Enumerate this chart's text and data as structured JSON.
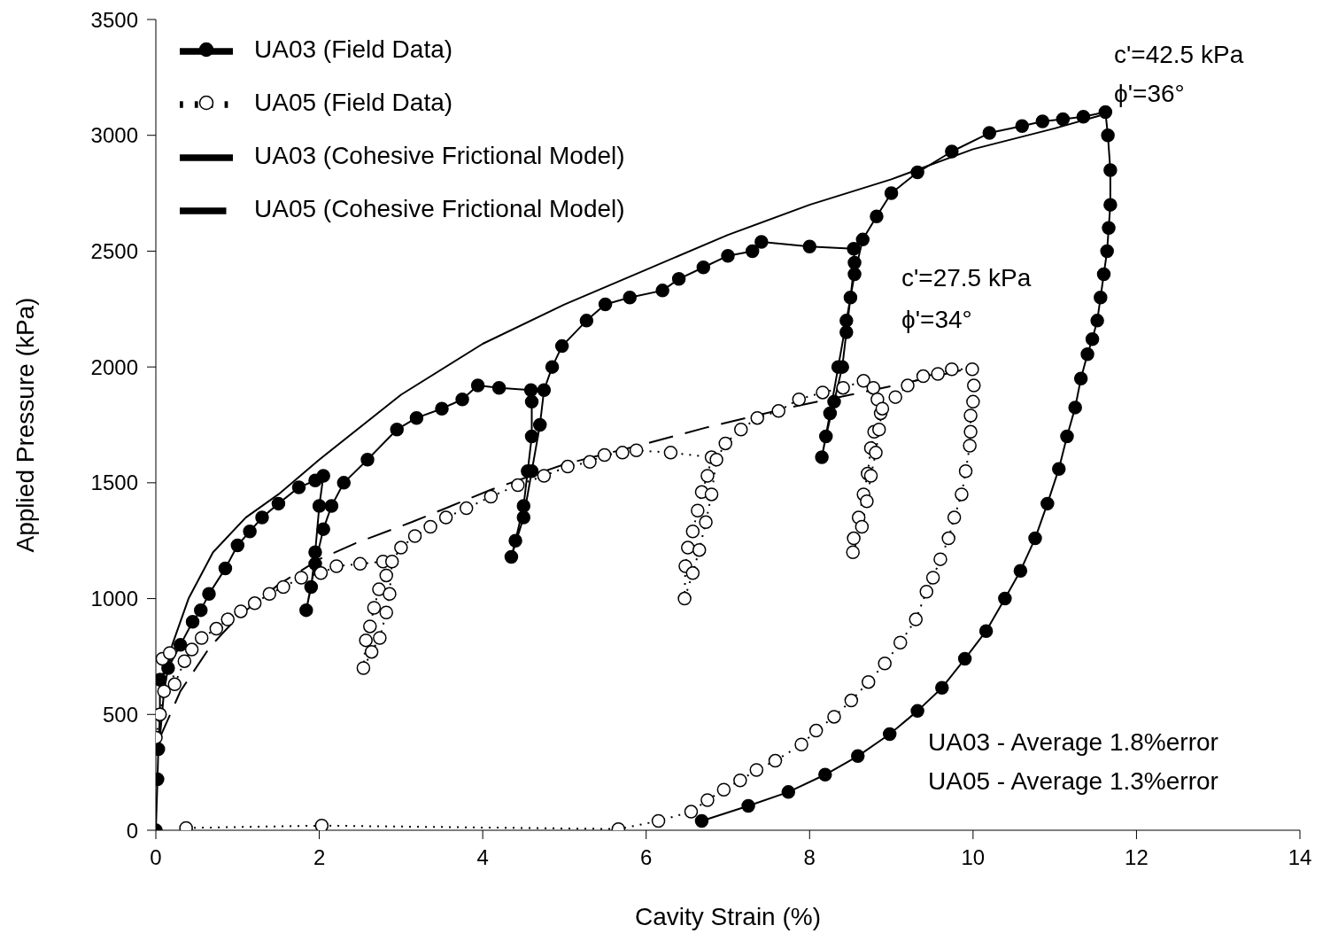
{
  "chart_data": {
    "type": "line",
    "xlabel": "Cavity Strain (%)",
    "ylabel": "Applied Pressure (kPa)",
    "xlim": [
      0,
      14
    ],
    "xticks": [
      0,
      2,
      4,
      6,
      8,
      10,
      12,
      14
    ],
    "ylim": [
      0,
      3500
    ],
    "yticks": [
      0,
      500,
      1000,
      1500,
      2000,
      2500,
      3000,
      3500
    ],
    "grid": false,
    "legend": "top left",
    "series": [
      {
        "name": "UA03 (Field Data)",
        "color": "#000000",
        "marker": "circle",
        "line_style": "solid",
        "x": [
          0,
          0.02,
          0.03,
          0.05,
          0.05,
          0.15,
          0.3,
          0.45,
          0.55,
          0.65,
          0.85,
          1.0,
          1.15,
          1.3,
          1.5,
          1.75,
          1.95,
          2.05,
          2.0,
          1.95,
          1.9,
          1.84,
          1.95,
          2.05,
          2.15,
          2.3,
          2.59,
          2.95,
          3.19,
          3.5,
          3.75,
          3.94,
          4.2,
          4.59,
          4.6,
          4.6,
          4.55,
          4.5,
          4.4,
          4.35,
          4.5,
          4.6,
          4.7,
          4.75,
          4.85,
          4.97,
          5.27,
          5.5,
          5.8,
          6.2,
          6.4,
          6.7,
          7.0,
          7.3,
          7.41,
          8.0,
          8.54,
          8.55,
          8.5,
          8.45,
          8.4,
          8.3,
          8.2,
          8.15,
          8.25,
          8.35,
          8.45,
          8.55,
          8.65,
          8.82,
          9.0,
          9.32,
          9.74,
          10.2,
          10.6,
          10.85,
          11.1,
          11.35,
          11.62,
          11.65,
          11.68,
          11.68,
          11.66,
          11.64,
          11.6,
          11.56,
          11.52,
          11.46,
          11.4,
          11.32,
          11.25,
          11.15,
          11.05,
          10.91,
          10.76,
          10.58,
          10.39,
          10.16,
          9.9,
          9.62,
          9.32,
          8.98,
          8.59,
          8.19,
          7.74,
          7.25,
          6.68
        ],
        "values": [
          0,
          220,
          350,
          500,
          650,
          700,
          800,
          900,
          950,
          1020,
          1130,
          1230,
          1290,
          1350,
          1410,
          1480,
          1510,
          1530,
          1400,
          1200,
          1050,
          950,
          1150,
          1300,
          1400,
          1500,
          1600,
          1730,
          1780,
          1820,
          1860,
          1920,
          1910,
          1900,
          1850,
          1700,
          1550,
          1400,
          1250,
          1180,
          1350,
          1550,
          1750,
          1900,
          2000,
          2090,
          2200,
          2270,
          2300,
          2330,
          2380,
          2430,
          2480,
          2500,
          2540,
          2520,
          2510,
          2450,
          2300,
          2150,
          2000,
          1850,
          1700,
          1610,
          1800,
          2000,
          2200,
          2400,
          2550,
          2650,
          2750,
          2840,
          2930,
          3010,
          3040,
          3060,
          3070,
          3080,
          3100,
          3000,
          2850,
          2700,
          2600,
          2500,
          2400,
          2300,
          2200,
          2120,
          2055,
          1950,
          1825,
          1700,
          1560,
          1410,
          1260,
          1120,
          1000,
          860,
          740,
          615,
          515,
          415,
          320,
          240,
          165,
          105,
          40
        ]
      },
      {
        "name": "UA05 (Field Data)",
        "color": "#000000",
        "marker": "circle",
        "line_style": "dotted",
        "x": [
          0.0,
          0.05,
          0.1,
          0.08,
          0.17,
          0.23,
          0.35,
          0.44,
          0.56,
          0.74,
          0.88,
          1.04,
          1.21,
          1.39,
          1.56,
          1.78,
          2.02,
          2.21,
          2.5,
          2.78,
          2.82,
          2.73,
          2.67,
          2.62,
          2.57,
          2.54,
          2.64,
          2.74,
          2.82,
          2.86,
          2.89,
          3.0,
          3.17,
          3.36,
          3.55,
          3.8,
          4.1,
          4.43,
          4.75,
          5.04,
          5.31,
          5.49,
          5.71,
          5.88,
          6.3,
          6.8,
          6.75,
          6.68,
          6.63,
          6.57,
          6.51,
          6.48,
          6.47,
          6.57,
          6.65,
          6.73,
          6.8,
          6.86,
          6.97,
          7.16,
          7.36,
          7.62,
          7.87,
          8.16,
          8.41,
          8.66,
          8.78,
          8.83,
          8.87,
          8.79,
          8.75,
          8.71,
          8.66,
          8.6,
          8.54,
          8.53,
          8.64,
          8.7,
          8.75,
          8.81,
          8.85,
          8.89,
          9.05,
          9.2,
          9.39,
          9.57,
          9.74,
          9.99,
          10.01,
          10.0,
          9.97,
          9.97,
          9.96,
          9.91,
          9.86,
          9.77,
          9.7,
          9.6,
          9.51,
          9.43,
          9.3,
          9.11,
          8.92,
          8.72,
          8.51,
          8.3,
          8.08,
          7.9,
          7.58,
          7.35,
          7.15,
          6.95,
          6.75,
          6.55,
          6.15,
          5.66,
          2.03,
          0.37
        ],
        "values": [
          400,
          500,
          600,
          740,
          765,
          630,
          730,
          780,
          830,
          870,
          910,
          945,
          980,
          1020,
          1050,
          1090,
          1110,
          1140,
          1150,
          1160,
          1100,
          1040,
          960,
          880,
          820,
          700,
          770,
          830,
          940,
          1020,
          1160,
          1220,
          1270,
          1310,
          1350,
          1390,
          1440,
          1490,
          1530,
          1570,
          1590,
          1620,
          1630,
          1640,
          1630,
          1610,
          1530,
          1460,
          1380,
          1290,
          1220,
          1140,
          1000,
          1110,
          1210,
          1330,
          1450,
          1600,
          1670,
          1730,
          1780,
          1810,
          1860,
          1890,
          1910,
          1940,
          1910,
          1860,
          1800,
          1720,
          1650,
          1540,
          1450,
          1350,
          1260,
          1200,
          1310,
          1420,
          1530,
          1630,
          1730,
          1820,
          1870,
          1920,
          1960,
          1970,
          1990,
          1990,
          1920,
          1850,
          1790,
          1720,
          1660,
          1550,
          1450,
          1350,
          1260,
          1170,
          1090,
          1030,
          910,
          810,
          720,
          640,
          560,
          490,
          430,
          370,
          300,
          260,
          215,
          175,
          130,
          80,
          40,
          5,
          20,
          10
        ]
      },
      {
        "name": "UA03 (Cohesive Frictional Model)",
        "color": "#000000",
        "marker": "none",
        "line_style": "solid",
        "x": [
          0.05,
          0.1,
          0.2,
          0.4,
          0.7,
          1.1,
          1.5,
          2,
          3,
          4,
          5,
          6,
          7,
          8,
          9,
          10,
          11,
          11.55
        ],
        "values": [
          400,
          600,
          800,
          1000,
          1200,
          1350,
          1450,
          1600,
          1880,
          2100,
          2270,
          2420,
          2570,
          2700,
          2810,
          2940,
          3030,
          3085
        ]
      },
      {
        "name": "UA05 (Cohesive Frictional Model)",
        "color": "#000000",
        "marker": "none",
        "line_style": "dashed",
        "x": [
          0.05,
          0.3,
          0.66,
          1.0,
          1.5,
          2.0,
          2.45,
          3.13,
          4.1,
          5,
          5.9,
          6.72,
          7.76,
          8.5,
          9.1,
          9.85
        ],
        "values": [
          400,
          600,
          790,
          920,
          1060,
          1170,
          1240,
          1330,
          1470,
          1580,
          1660,
          1737,
          1825,
          1880,
          1925,
          1985
        ]
      }
    ],
    "annotations": [
      "c'=42.5 kPa",
      "ϕ'=36°",
      "c'=27.5 kPa",
      "ϕ'=34°",
      "UA03 - Average 1.8%error",
      "UA05 - Average 1.3%error"
    ]
  }
}
